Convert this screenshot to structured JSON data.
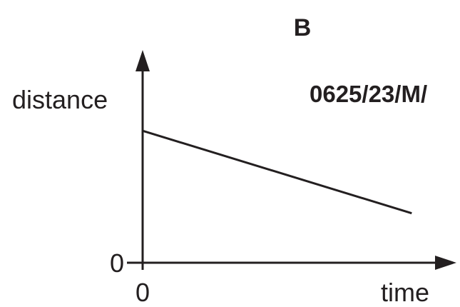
{
  "panel_label": "B",
  "reference_code": "0625/23/M/",
  "colors": {
    "ink": "#231f20",
    "background": "#ffffff"
  },
  "chart_data": {
    "type": "line",
    "title": "",
    "xlabel": "time",
    "ylabel": "distance",
    "x_ticks": [
      "0"
    ],
    "y_ticks": [
      "0"
    ],
    "xlim": [
      0,
      1.1
    ],
    "ylim": [
      0,
      1.3
    ],
    "grid": false,
    "legend": "none",
    "series": [
      {
        "x": [
          0,
          1
        ],
        "y": [
          0.88,
          0.33
        ]
      }
    ]
  }
}
